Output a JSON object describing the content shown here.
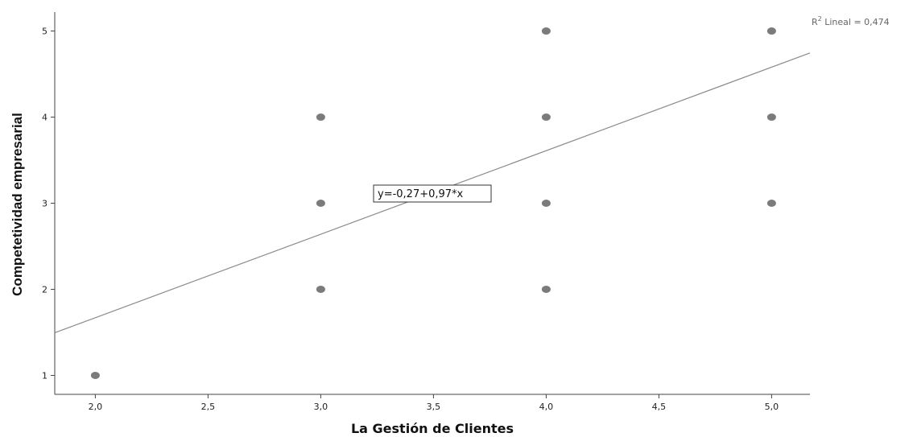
{
  "chart_data": {
    "type": "scatter",
    "xlabel": "La Gestión de Clientes",
    "ylabel": "Competetividad empresarial",
    "xlim": [
      1.82,
      5.17
    ],
    "ylim": [
      0.78,
      5.22
    ],
    "x_ticks": [
      "2,0",
      "2,5",
      "3,0",
      "3,5",
      "4,0",
      "4,5",
      "5,0"
    ],
    "x_tick_values": [
      2.0,
      2.5,
      3.0,
      3.5,
      4.0,
      4.5,
      5.0
    ],
    "y_ticks": [
      "1",
      "2",
      "3",
      "4",
      "5"
    ],
    "y_tick_values": [
      1,
      2,
      3,
      4,
      5
    ],
    "points": [
      {
        "x": 2,
        "y": 1
      },
      {
        "x": 3,
        "y": 2
      },
      {
        "x": 3,
        "y": 3
      },
      {
        "x": 3,
        "y": 4
      },
      {
        "x": 4,
        "y": 2
      },
      {
        "x": 4,
        "y": 3
      },
      {
        "x": 4,
        "y": 4
      },
      {
        "x": 4,
        "y": 5
      },
      {
        "x": 5,
        "y": 3
      },
      {
        "x": 5,
        "y": 4
      },
      {
        "x": 5,
        "y": 5
      }
    ],
    "fit_line": {
      "intercept": -0.27,
      "slope": 0.97
    },
    "equation_label": "y=-0,27+0,97*x",
    "r2_label_prefix": "R",
    "r2_label_sup": "2",
    "r2_label_suffix": " Lineal = 0,474",
    "point_color": "#7b7b7b",
    "line_color": "#8a8a8a",
    "grid": false
  }
}
